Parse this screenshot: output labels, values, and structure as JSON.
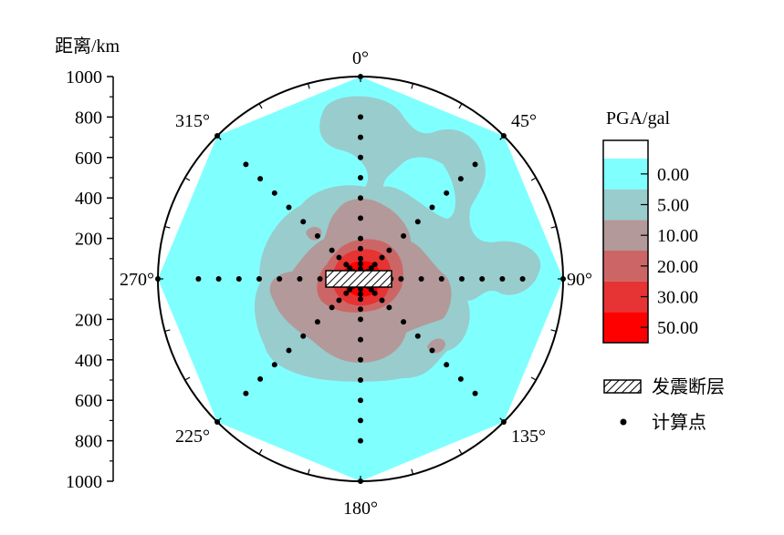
{
  "chart_data": {
    "type": "polar-contour",
    "radial_axis": {
      "title": "距离/km",
      "upper_ticks": [
        "1000",
        "800",
        "600",
        "400",
        "200"
      ],
      "lower_ticks": [
        "200",
        "400",
        "600",
        "800",
        "1000"
      ],
      "range": [
        0,
        1000
      ]
    },
    "angle_labels": [
      {
        "deg": 0,
        "text": "0°"
      },
      {
        "deg": 45,
        "text": "45°"
      },
      {
        "deg": 90,
        "text": "90°"
      },
      {
        "deg": 135,
        "text": "135°"
      },
      {
        "deg": 180,
        "text": "180°"
      },
      {
        "deg": 225,
        "text": "225°"
      },
      {
        "deg": 270,
        "text": "270°"
      },
      {
        "deg": 315,
        "text": "315°"
      }
    ],
    "colorbar": {
      "title": "PGA/gal",
      "levels": [
        "0.00",
        "5.00",
        "10.00",
        "20.00",
        "30.00",
        "50.00"
      ],
      "colors": [
        "#80ffff",
        "#99cccc",
        "#b39999",
        "#cc6666",
        "#e63333",
        "#ff0000"
      ]
    },
    "legend": [
      {
        "label": "发震断层",
        "symbol": "hatched-rect"
      },
      {
        "label": "计算点",
        "symbol": "dot"
      }
    ],
    "calculation_points": {
      "directions_deg": [
        0,
        45,
        90,
        135,
        180,
        225,
        270,
        315
      ],
      "radii_km": [
        0,
        25,
        50,
        75,
        100,
        150,
        200,
        300,
        400,
        500,
        600,
        700,
        800,
        1000
      ]
    },
    "fault": {
      "strike_deg": 90,
      "length_km": 160
    }
  }
}
